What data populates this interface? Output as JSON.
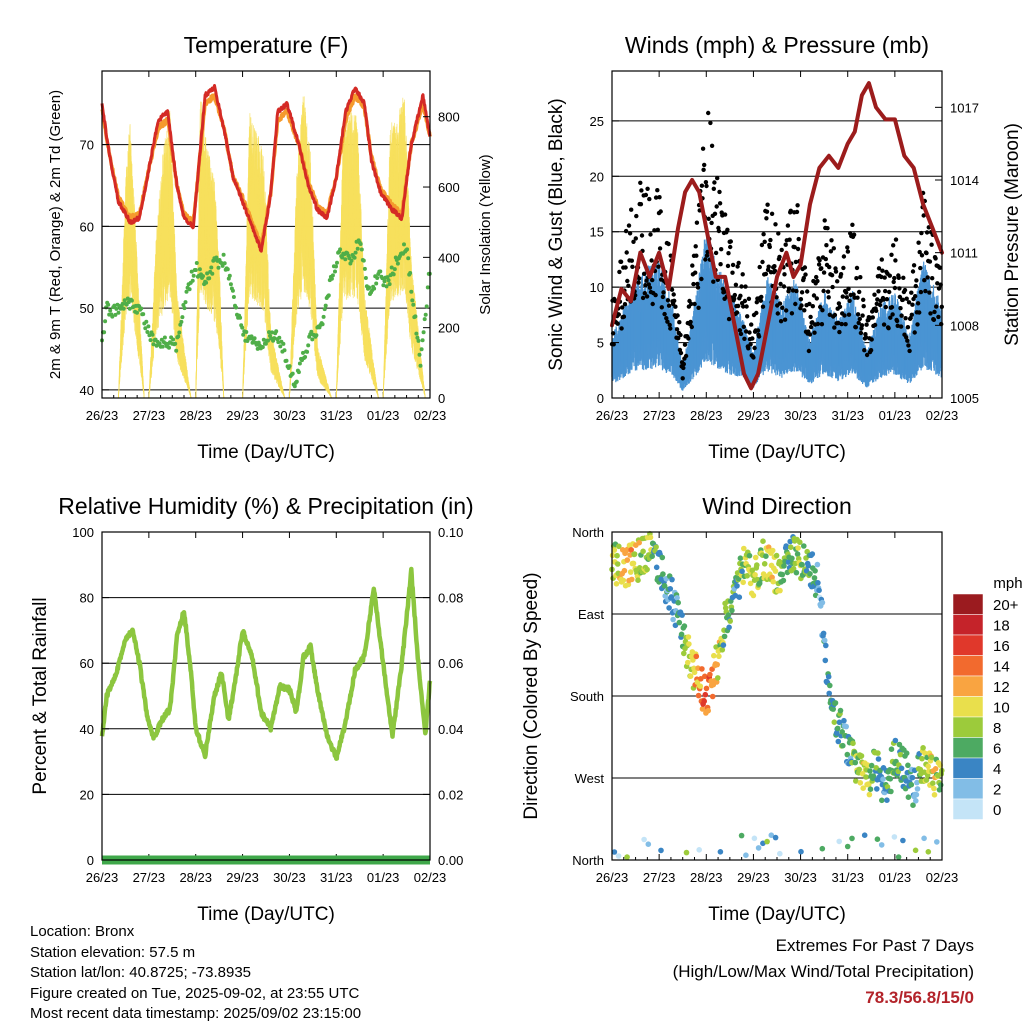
{
  "info": {
    "location": "Location: Bronx",
    "elevation": "Station elevation: 57.5 m",
    "latlon": "Station lat/lon: 40.8725; -73.8935",
    "created": "Figure created on Tue, 2025-09-02, at 23:55 UTC",
    "recent": "Most recent data timestamp: 2025/09/02 23:15:00"
  },
  "extremes": {
    "title": "Extremes For Past 7 Days",
    "subtitle": "(High/Low/Max Wind/Total Precipitation)",
    "values": "78.3/56.8/15/0"
  },
  "colors": {
    "temp2m": "#d42a25",
    "temp9m": "#f59a2d",
    "dewpoint": "#4fae48",
    "solar": "#f7df5c",
    "gust": "#000000",
    "wind": "#4b94d3",
    "pressure": "#9c1c1c",
    "rh": "#8cc63f",
    "precip": "#3fa84a"
  },
  "chart_data": [
    {
      "type": "line",
      "title": "Temperature (F)",
      "xlabel": "Time (Day/UTC)",
      "ylabel": "2m & 9m T (Red, Orange) & 2m Td (Green)",
      "y2label": "Solar Insolation (Yellow)",
      "xticks": [
        "26/23",
        "27/23",
        "28/23",
        "29/23",
        "30/23",
        "31/23",
        "01/23",
        "02/23"
      ],
      "yticks": [
        "40",
        "50",
        "60",
        "70"
      ],
      "y2ticks": [
        "0",
        "200",
        "400",
        "600",
        "800"
      ],
      "ylim": [
        39,
        79
      ],
      "y2lim": [
        0,
        930
      ],
      "grid": true,
      "series": [
        {
          "key": "temp2m",
          "x": [
            0,
            0.15,
            0.35,
            0.6,
            0.8,
            1.0,
            1.2,
            1.4,
            1.6,
            1.75,
            1.95,
            2.2,
            2.4,
            2.6,
            2.8,
            3.0,
            3.2,
            3.4,
            3.6,
            3.75,
            3.95,
            4.2,
            4.4,
            4.6,
            4.8,
            5.0,
            5.2,
            5.4,
            5.6,
            5.75,
            5.95,
            6.2,
            6.4,
            6.6,
            6.85,
            7.0
          ],
          "y": [
            75,
            69,
            63,
            60.5,
            61,
            67,
            73,
            74,
            65,
            61,
            60,
            76,
            77,
            72,
            66,
            63,
            60,
            57,
            64,
            74,
            75,
            70,
            65,
            62,
            61,
            66,
            74,
            77,
            75,
            68,
            64,
            62,
            61,
            70,
            76,
            71
          ]
        },
        {
          "key": "temp9m",
          "x": [
            0,
            0.15,
            0.35,
            0.6,
            0.8,
            1.0,
            1.2,
            1.4,
            1.6,
            1.75,
            1.95,
            2.2,
            2.4,
            2.6,
            2.8,
            3.0,
            3.2,
            3.4,
            3.6,
            3.75,
            3.95,
            4.2,
            4.4,
            4.6,
            4.8,
            5.0,
            5.2,
            5.4,
            5.6,
            5.75,
            5.95,
            6.2,
            6.4,
            6.6,
            6.85,
            7.0
          ],
          "y": [
            74.5,
            69,
            63.5,
            61,
            61.5,
            67,
            72,
            73,
            65,
            61.5,
            60.5,
            75,
            76,
            72,
            66,
            63.5,
            60.5,
            57.5,
            64,
            73,
            74,
            70,
            65.5,
            62.5,
            61.5,
            66,
            73,
            76,
            74.5,
            68.5,
            64.5,
            62.5,
            61.5,
            70,
            75,
            71
          ]
        },
        {
          "key": "dewpoint",
          "x": [
            0,
            0.1,
            0.3,
            0.5,
            0.8,
            1.0,
            1.2,
            1.4,
            1.6,
            1.8,
            2.0,
            2.2,
            2.4,
            2.6,
            2.8,
            3.0,
            3.2,
            3.4,
            3.6,
            3.8,
            4.0,
            4.1,
            4.3,
            4.5,
            4.7,
            4.9,
            5.1,
            5.3,
            5.5,
            5.7,
            5.9,
            6.1,
            6.3,
            6.5,
            6.7,
            6.8,
            7.0
          ],
          "y": [
            46,
            50,
            49.5,
            51,
            50,
            47,
            45,
            46,
            45.5,
            52,
            55,
            53,
            55.5,
            56,
            52,
            47,
            46,
            45,
            47,
            46,
            43,
            40.5,
            44,
            47,
            48,
            54,
            57,
            56,
            58,
            52,
            54,
            53,
            56,
            57.5,
            48,
            43,
            55
          ]
        },
        {
          "key": "solar",
          "x": [
            0,
            0.35,
            0.5,
            0.6,
            0.9,
            1.0,
            1.15,
            1.3,
            1.45,
            1.6,
            1.9,
            2.0,
            2.1,
            2.25,
            2.4,
            2.5,
            2.6,
            2.9,
            3.0,
            3.15,
            3.3,
            3.45,
            3.6,
            3.9,
            4.0,
            4.15,
            4.3,
            4.45,
            4.6,
            4.9,
            5.0,
            5.15,
            5.3,
            5.45,
            5.6,
            5.9,
            6.0,
            6.15,
            6.3,
            6.45,
            6.6,
            6.9,
            7.0
          ],
          "y": [
            0,
            0,
            620,
            800,
            0,
            0,
            450,
            700,
            830,
            300,
            0,
            0,
            880,
            720,
            620,
            400,
            0,
            0,
            0,
            820,
            760,
            700,
            200,
            0,
            0,
            640,
            880,
            700,
            150,
            0,
            0,
            780,
            820,
            800,
            300,
            0,
            0,
            780,
            800,
            880,
            400,
            0,
            0
          ]
        }
      ]
    },
    {
      "type": "scatter",
      "title": "Winds (mph) & Pressure (mb)",
      "xlabel": "Time (Day/UTC)",
      "ylabel": "Sonic Wind & Gust (Blue, Black)",
      "y2label": "Station Pressure (Maroon)",
      "xticks": [
        "26/23",
        "27/23",
        "28/23",
        "29/23",
        "30/23",
        "31/23",
        "01/23",
        "02/23"
      ],
      "yticks": [
        "0",
        "5",
        "10",
        "15",
        "20",
        "25"
      ],
      "y2ticks": [
        "1005",
        "1008",
        "1011",
        "1014",
        "1017"
      ],
      "ylim": [
        0,
        29.5
      ],
      "y2lim": [
        1005,
        1018.5
      ],
      "grid": true,
      "series": [
        {
          "key": "gust",
          "x": [
            0,
            0.5,
            1.0,
            1.3,
            1.5,
            1.8,
            2.0,
            2.2,
            2.5,
            2.8,
            3.0,
            3.3,
            3.6,
            3.9,
            4.2,
            4.5,
            4.8,
            5.1,
            5.4,
            5.7,
            6.0,
            6.3,
            6.6,
            7.0
          ],
          "y": [
            7,
            16,
            15,
            10,
            3,
            13,
            22,
            18,
            12,
            9,
            6,
            15,
            11,
            15,
            7,
            13,
            10,
            13,
            6,
            10,
            12,
            7,
            15,
            9
          ]
        },
        {
          "key": "wind",
          "x": [
            0,
            0.5,
            1.0,
            1.3,
            1.5,
            1.8,
            2.0,
            2.2,
            2.5,
            2.8,
            3.0,
            3.3,
            3.6,
            3.9,
            4.2,
            4.5,
            4.8,
            5.1,
            5.4,
            5.7,
            6.0,
            6.3,
            6.6,
            7.0
          ],
          "y": [
            4,
            8,
            9,
            6,
            2,
            7,
            11,
            9,
            7,
            5,
            3,
            8,
            6,
            8,
            4,
            7,
            5,
            7,
            3,
            6,
            7,
            4,
            9,
            6
          ]
        },
        {
          "key": "pressure",
          "x": [
            0,
            0.2,
            0.4,
            0.6,
            0.8,
            1.0,
            1.2,
            1.4,
            1.55,
            1.7,
            1.85,
            2.0,
            2.2,
            2.4,
            2.6,
            2.8,
            2.95,
            3.1,
            3.3,
            3.5,
            3.7,
            3.85,
            4.0,
            4.2,
            4.4,
            4.6,
            4.8,
            5.0,
            5.15,
            5.3,
            5.45,
            5.6,
            5.8,
            6.0,
            6.2,
            6.4,
            6.6,
            6.8,
            7.0
          ],
          "y": [
            1008,
            1009.5,
            1009,
            1011,
            1010,
            1011,
            1009.5,
            1012,
            1013.5,
            1014,
            1013.5,
            1012,
            1010,
            1010,
            1008,
            1006,
            1005.4,
            1006,
            1008,
            1010,
            1011,
            1010,
            1010.5,
            1013,
            1014.5,
            1015,
            1014.5,
            1015.5,
            1016,
            1017.5,
            1018,
            1017,
            1016.5,
            1016.5,
            1015,
            1014.5,
            1013,
            1012,
            1011
          ]
        }
      ]
    },
    {
      "type": "line",
      "title": "Relative Humidity (%) & Precipitation (in)",
      "xlabel": "Time (Day/UTC)",
      "ylabel": "Percent & Total Rainfall",
      "xticks": [
        "26/23",
        "27/23",
        "28/23",
        "29/23",
        "30/23",
        "31/23",
        "01/23",
        "02/23"
      ],
      "yticks": [
        "0",
        "20",
        "40",
        "60",
        "80",
        "100"
      ],
      "y2ticks": [
        "0.00",
        "0.02",
        "0.04",
        "0.06",
        "0.08",
        "0.10"
      ],
      "ylim": [
        0,
        100
      ],
      "y2lim": [
        0,
        0.1
      ],
      "grid": true,
      "series": [
        {
          "key": "rh",
          "x": [
            0,
            0.1,
            0.3,
            0.5,
            0.65,
            0.8,
            0.95,
            1.1,
            1.25,
            1.45,
            1.6,
            1.75,
            1.9,
            2.0,
            2.2,
            2.4,
            2.55,
            2.7,
            2.85,
            3.0,
            3.2,
            3.4,
            3.6,
            3.8,
            4.0,
            4.15,
            4.3,
            4.45,
            4.6,
            4.8,
            5.0,
            5.2,
            5.4,
            5.6,
            5.8,
            6.0,
            6.2,
            6.4,
            6.6,
            6.75,
            6.9,
            7.0
          ],
          "y": [
            37,
            50,
            57,
            67,
            70,
            60,
            45,
            37,
            42,
            46,
            68,
            76,
            57,
            40,
            32,
            50,
            57,
            43,
            55,
            70,
            62,
            45,
            40,
            53,
            52,
            45,
            62,
            65,
            52,
            38,
            31,
            42,
            58,
            62,
            83,
            60,
            38,
            60,
            88,
            60,
            38,
            55
          ]
        },
        {
          "key": "precip",
          "x": [
            0,
            7
          ],
          "y": [
            0,
            0
          ]
        }
      ]
    },
    {
      "type": "scatter",
      "title": "Wind Direction",
      "xlabel": "Time (Day/UTC)",
      "ylabel": "Direction (Colored By Speed)",
      "xticks": [
        "26/23",
        "27/23",
        "28/23",
        "29/23",
        "30/23",
        "31/23",
        "01/23",
        "02/23"
      ],
      "yticks": [
        "North",
        "East",
        "South",
        "West",
        "North"
      ],
      "ylim": [
        0,
        360
      ],
      "grid": true,
      "legend": {
        "title": "mph",
        "labels": [
          "20+",
          "18",
          "16",
          "14",
          "12",
          "10",
          "8",
          "6",
          "4",
          "2",
          "0"
        ],
        "colors": [
          "#9b1b1f",
          "#c5232a",
          "#e0382b",
          "#f26a2e",
          "#f9a441",
          "#e9df4c",
          "#9ccb3b",
          "#4daa62",
          "#3a85c4",
          "#82bde6",
          "#c4e4f7"
        ],
        "placement": "right"
      },
      "series": [
        {
          "key": "direction",
          "x": [
            0,
            0.2,
            0.4,
            0.6,
            0.8,
            1.0,
            1.2,
            1.4,
            1.6,
            1.8,
            2.0,
            2.2,
            2.4,
            2.6,
            2.8,
            3.0,
            3.2,
            3.4,
            3.6,
            3.8,
            4.0,
            4.2,
            4.4,
            4.6,
            4.8,
            5.0,
            5.2,
            5.4,
            5.6,
            5.8,
            6.0,
            6.2,
            6.4,
            6.6,
            6.8,
            7.0
          ],
          "y": [
            330,
            320,
            325,
            330,
            340,
            320,
            300,
            270,
            230,
            200,
            180,
            210,
            260,
            300,
            320,
            310,
            330,
            320,
            310,
            340,
            330,
            320,
            300,
            180,
            150,
            120,
            100,
            90,
            100,
            80,
            110,
            100,
            80,
            110,
            90,
            100
          ],
          "speed": [
            8,
            10,
            11,
            9,
            8,
            5,
            3,
            4,
            8,
            12,
            14,
            11,
            6,
            5,
            8,
            9,
            7,
            10,
            7,
            6,
            8,
            6,
            3,
            5,
            6,
            4,
            8,
            10,
            6,
            4,
            7,
            5,
            3,
            8,
            10,
            7
          ]
        }
      ]
    }
  ]
}
